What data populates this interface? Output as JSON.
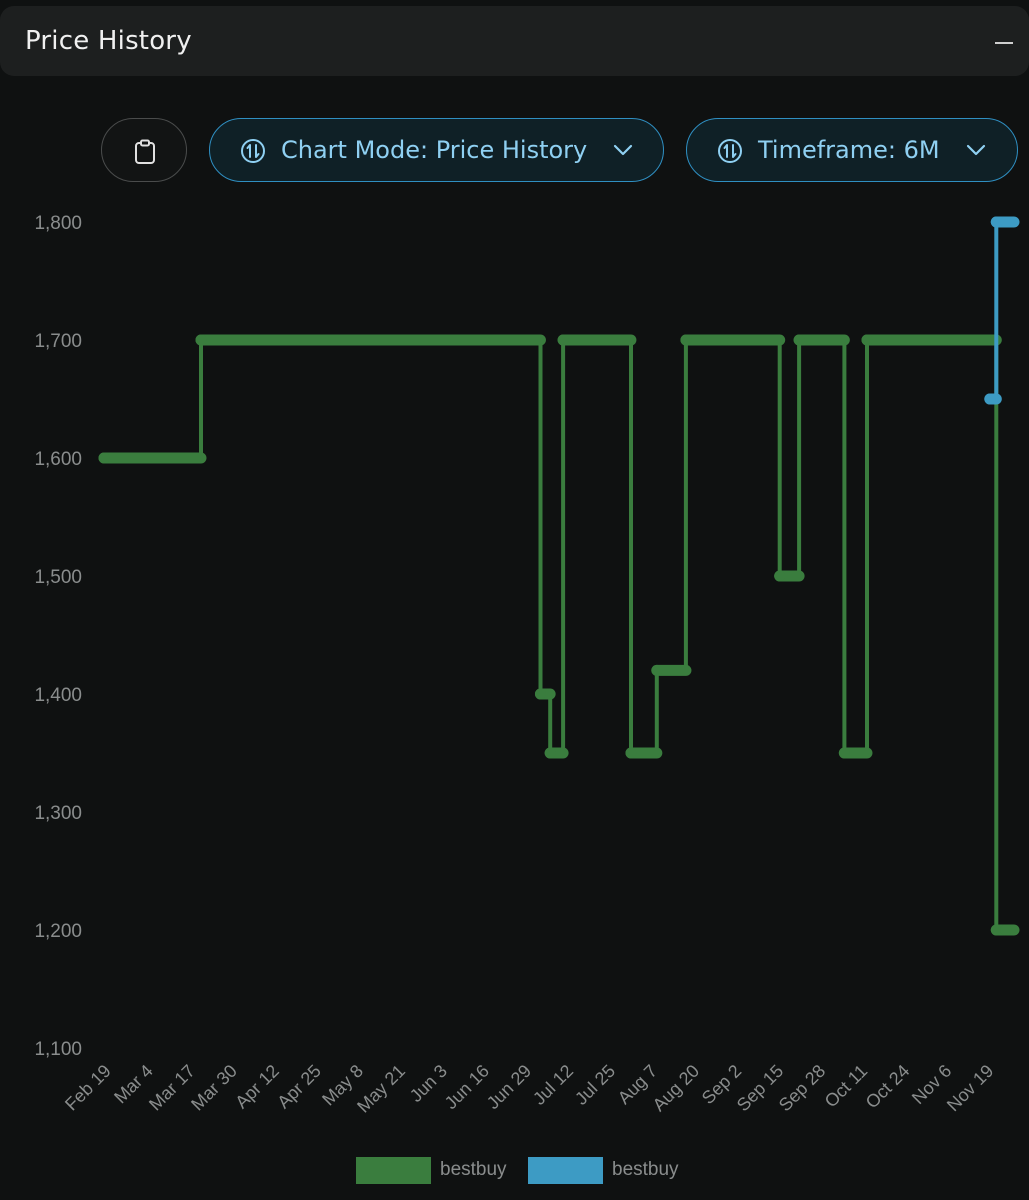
{
  "header": {
    "title": "Price History"
  },
  "controls": {
    "clipboard_icon": "clipboard-icon",
    "chart_mode_label": "Chart Mode: Price History",
    "timeframe_label": "Timeframe: 6M",
    "switch_icon": "switch-arrows-icon",
    "chevron_icon": "chevron-down-icon"
  },
  "colors": {
    "background": "#0f1111",
    "series_green": "#3a7d3e",
    "series_blue": "#3d9bc4",
    "accent": "#2f8fc2",
    "tick_text": "#8a8d8d"
  },
  "chart_data": {
    "type": "line",
    "x_tick_labels": [
      "Feb 19",
      "Mar 4",
      "Mar 17",
      "Mar 30",
      "Apr 12",
      "Apr 25",
      "May 8",
      "May 21",
      "Jun 3",
      "Jun 16",
      "Jun 29",
      "Jul 12",
      "Jul 25",
      "Aug 7",
      "Aug 20",
      "Sep 2",
      "Sep 15",
      "Sep 28",
      "Oct 11",
      "Oct 24",
      "Nov 6",
      "Nov 19"
    ],
    "y_tick_labels": [
      "1,100",
      "1,200",
      "1,300",
      "1,400",
      "1,500",
      "1,600",
      "1,700",
      "1,800"
    ],
    "ylim": [
      1100,
      1800
    ],
    "xlim": [
      "2024-02-19",
      "2024-11-24"
    ],
    "step": true,
    "grid": false,
    "legend_position": "bottom",
    "series": [
      {
        "name": "bestbuy",
        "color": "#3a7d3e",
        "points": [
          {
            "x": "2024-02-19",
            "y": 1600
          },
          {
            "x": "2024-03-20",
            "y": 1700
          },
          {
            "x": "2024-07-03",
            "y": 1400
          },
          {
            "x": "2024-07-06",
            "y": 1350
          },
          {
            "x": "2024-07-10",
            "y": 1700
          },
          {
            "x": "2024-07-31",
            "y": 1350
          },
          {
            "x": "2024-08-08",
            "y": 1420
          },
          {
            "x": "2024-08-17",
            "y": 1700
          },
          {
            "x": "2024-09-15",
            "y": 1500
          },
          {
            "x": "2024-09-21",
            "y": 1700
          },
          {
            "x": "2024-10-05",
            "y": 1350
          },
          {
            "x": "2024-10-12",
            "y": 1700
          },
          {
            "x": "2024-11-21",
            "y": 1200
          },
          {
            "x": "2024-11-24",
            "y": 1200
          }
        ]
      },
      {
        "name": "bestbuy",
        "color": "#3d9bc4",
        "points": [
          {
            "x": "2024-11-19",
            "y": 1650
          },
          {
            "x": "2024-11-21",
            "y": 1800
          },
          {
            "x": "2024-11-24",
            "y": 1800
          }
        ]
      }
    ]
  }
}
